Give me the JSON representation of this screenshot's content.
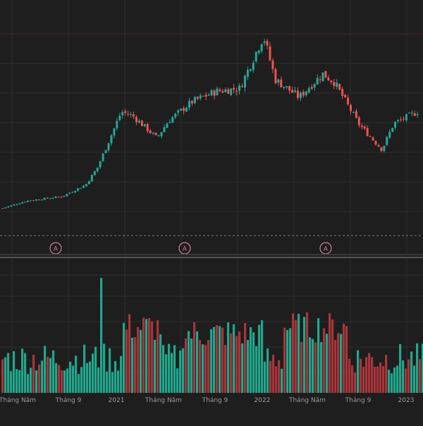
{
  "chart_data": [
    {
      "type": "candlestick",
      "title": "",
      "xlabel": "",
      "ylabel": "",
      "x_tick_labels": [
        "Tháng Năm",
        "Tháng 9",
        "2021",
        "Tháng Năm",
        "Tháng 9",
        "2022",
        "Tháng Năm",
        "Tháng 9",
        "2023"
      ],
      "period": [
        "2020-04",
        "2023-03"
      ],
      "up_color": "#26a69a",
      "down_color": "#ef5350",
      "grid": true,
      "legend": "none",
      "trend_keypoints": [
        {
          "date": "2020-04",
          "close": 12
        },
        {
          "date": "2020-06",
          "close": 17
        },
        {
          "date": "2020-09",
          "close": 20
        },
        {
          "date": "2020-11",
          "close": 28
        },
        {
          "date": "2020-12",
          "close": 40
        },
        {
          "date": "2021-02",
          "close": 78
        },
        {
          "date": "2021-03",
          "close": 75
        },
        {
          "date": "2021-05",
          "close": 60
        },
        {
          "date": "2021-06",
          "close": 72
        },
        {
          "date": "2021-08",
          "close": 85
        },
        {
          "date": "2021-10",
          "close": 92
        },
        {
          "date": "2021-12",
          "close": 94
        },
        {
          "date": "2022-02",
          "close": 130
        },
        {
          "date": "2022-03",
          "close": 100
        },
        {
          "date": "2022-05",
          "close": 88
        },
        {
          "date": "2022-07",
          "close": 104
        },
        {
          "date": "2022-08",
          "close": 98
        },
        {
          "date": "2022-10",
          "close": 70
        },
        {
          "date": "2022-12",
          "close": 52
        },
        {
          "date": "2023-01",
          "close": 70
        },
        {
          "date": "2023-03",
          "close": 78
        }
      ]
    },
    {
      "type": "bar",
      "name": "volume",
      "x_tick_labels": [
        "Tháng Năm",
        "Tháng 9",
        "2021",
        "Tháng Năm",
        "Tháng 9",
        "2022",
        "Tháng Năm",
        "Tháng 9",
        "2023"
      ],
      "up_color": "#26a69a",
      "down_color": "#ef5350"
    }
  ],
  "markers": [
    {
      "label": "A"
    },
    {
      "label": "A"
    },
    {
      "label": "A"
    }
  ],
  "colors": {
    "background": "#1e1e1e",
    "grid": "#2e2e2e",
    "axis_text": "#9a9a9a",
    "up": "#26a69a",
    "down": "#ef5350",
    "up_volume": "#22a68c",
    "down_volume": "#a8353a",
    "dashed_line": "#777777",
    "marker": "#d07e9c"
  }
}
